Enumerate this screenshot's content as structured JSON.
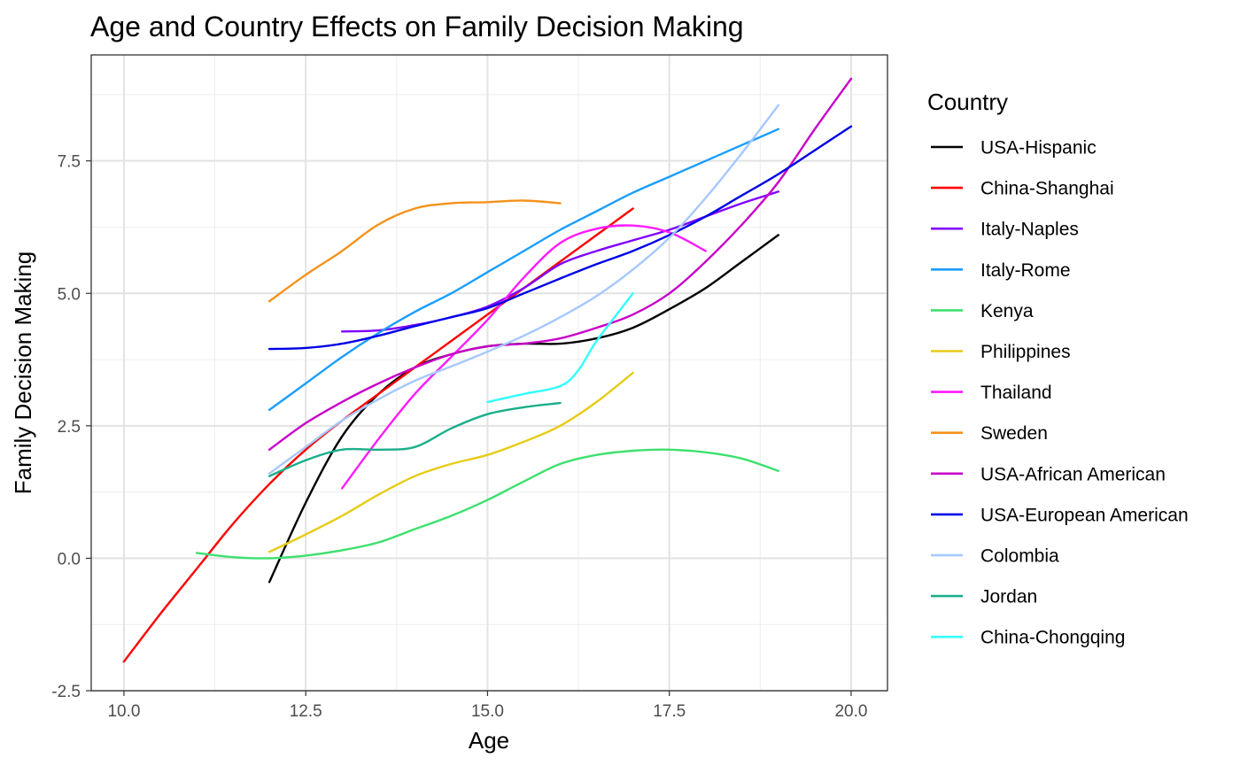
{
  "chart_data": {
    "type": "line",
    "title": "Age and Country Effects on Family Decision Making",
    "xlabel": "Age",
    "ylabel": "Family Decision Making",
    "xlim": [
      9.55,
      20.5
    ],
    "ylim": [
      -2.5,
      9.5
    ],
    "xticks": [
      {
        "value": 10.0,
        "label": "10.0"
      },
      {
        "value": 12.5,
        "label": "12.5"
      },
      {
        "value": 15.0,
        "label": "15.0"
      },
      {
        "value": 17.5,
        "label": "17.5"
      },
      {
        "value": 20.0,
        "label": "20.0"
      }
    ],
    "yticks": [
      {
        "value": -2.5,
        "label": "-2.5"
      },
      {
        "value": 0.0,
        "label": "0.0"
      },
      {
        "value": 2.5,
        "label": "2.5"
      },
      {
        "value": 5.0,
        "label": "5.0"
      },
      {
        "value": 7.5,
        "label": "7.5"
      }
    ],
    "grid": true,
    "legend_title": "Country",
    "legend_position": "right",
    "series": [
      {
        "name": "USA-Hispanic",
        "color": "#000000",
        "x": [
          12,
          12.5,
          13,
          13.5,
          14,
          14.5,
          15,
          15.5,
          16,
          16.5,
          17,
          17.5,
          18,
          18.5,
          19
        ],
        "y": [
          -0.45,
          1.05,
          2.3,
          3.1,
          3.6,
          3.85,
          4.0,
          4.05,
          4.05,
          4.15,
          4.35,
          4.7,
          5.1,
          5.6,
          6.1
        ]
      },
      {
        "name": "China-Shanghai",
        "color": "#ff0000",
        "x": [
          10,
          10.5,
          11,
          11.5,
          12,
          12.5,
          13,
          13.5,
          14,
          14.5,
          15,
          15.5,
          16,
          16.5,
          17
        ],
        "y": [
          -1.95,
          -1.05,
          -0.2,
          0.65,
          1.4,
          2.05,
          2.6,
          3.1,
          3.6,
          4.1,
          4.6,
          5.1,
          5.6,
          6.1,
          6.6
        ]
      },
      {
        "name": "Italy-Naples",
        "color": "#8000ff",
        "x": [
          13,
          13.5,
          14,
          14.5,
          15,
          15.5,
          16,
          16.5,
          17,
          17.5,
          18,
          18.5,
          19
        ],
        "y": [
          4.28,
          4.3,
          4.4,
          4.55,
          4.75,
          5.1,
          5.55,
          5.8,
          6.0,
          6.2,
          6.45,
          6.7,
          6.92
        ]
      },
      {
        "name": "Italy-Rome",
        "color": "#1a9eff",
        "x": [
          12,
          12.5,
          13,
          13.5,
          14,
          14.5,
          15,
          15.5,
          16,
          16.5,
          17,
          17.5,
          18,
          18.5,
          19
        ],
        "y": [
          2.8,
          3.3,
          3.8,
          4.25,
          4.65,
          5.0,
          5.4,
          5.8,
          6.2,
          6.55,
          6.9,
          7.2,
          7.5,
          7.8,
          8.1
        ]
      },
      {
        "name": "Kenya",
        "color": "#3ee06e",
        "x": [
          11,
          11.5,
          12,
          12.5,
          13,
          13.5,
          14,
          14.5,
          15,
          15.5,
          16,
          16.5,
          17,
          17.5,
          18,
          18.5,
          19
        ],
        "y": [
          0.1,
          0.02,
          0.0,
          0.05,
          0.15,
          0.3,
          0.55,
          0.8,
          1.1,
          1.45,
          1.78,
          1.95,
          2.03,
          2.05,
          2.0,
          1.88,
          1.65
        ]
      },
      {
        "name": "Philippines",
        "color": "#e6cc17",
        "x": [
          12,
          12.5,
          13,
          13.5,
          14,
          14.5,
          15,
          15.5,
          16,
          16.5,
          17
        ],
        "y": [
          0.12,
          0.45,
          0.8,
          1.2,
          1.55,
          1.78,
          1.95,
          2.2,
          2.5,
          2.95,
          3.5
        ]
      },
      {
        "name": "Thailand",
        "color": "#ff1aff",
        "x": [
          13,
          13.5,
          14,
          14.5,
          15,
          15.5,
          16,
          16.5,
          17,
          17.5,
          18
        ],
        "y": [
          1.32,
          2.25,
          3.1,
          3.8,
          4.5,
          5.3,
          5.95,
          6.22,
          6.28,
          6.15,
          5.8
        ]
      },
      {
        "name": "Sweden",
        "color": "#f5921b",
        "x": [
          12,
          12.5,
          13,
          13.5,
          14,
          14.5,
          15,
          15.5,
          16
        ],
        "y": [
          4.85,
          5.35,
          5.8,
          6.3,
          6.6,
          6.7,
          6.72,
          6.75,
          6.7
        ]
      },
      {
        "name": "USA-African American",
        "color": "#c800c8",
        "x": [
          12,
          12.5,
          13,
          13.5,
          14,
          14.5,
          15,
          15.5,
          16,
          16.5,
          17,
          17.5,
          18,
          18.5,
          19,
          19.5,
          20
        ],
        "y": [
          2.05,
          2.55,
          2.95,
          3.3,
          3.6,
          3.85,
          4.0,
          4.05,
          4.15,
          4.35,
          4.6,
          5.0,
          5.6,
          6.3,
          7.1,
          8.1,
          9.05
        ]
      },
      {
        "name": "USA-European American",
        "color": "#0000e6",
        "x": [
          12,
          12.5,
          13,
          13.5,
          14,
          14.5,
          15,
          15.5,
          16,
          16.5,
          17,
          17.5,
          18,
          18.5,
          19,
          19.5,
          20
        ],
        "y": [
          3.95,
          3.97,
          4.05,
          4.2,
          4.38,
          4.55,
          4.72,
          5.0,
          5.28,
          5.55,
          5.8,
          6.1,
          6.45,
          6.85,
          7.25,
          7.7,
          8.15
        ]
      },
      {
        "name": "Colombia",
        "color": "#a6c8ff",
        "x": [
          12,
          12.5,
          13,
          13.5,
          14,
          14.5,
          15,
          15.5,
          16,
          16.5,
          17,
          17.5,
          18,
          18.5,
          19
        ],
        "y": [
          1.6,
          2.1,
          2.6,
          3.0,
          3.35,
          3.62,
          3.9,
          4.2,
          4.55,
          4.95,
          5.45,
          6.05,
          6.8,
          7.65,
          8.55
        ]
      },
      {
        "name": "Jordan",
        "color": "#1aaf8a",
        "x": [
          12,
          12.5,
          13,
          13.5,
          14,
          14.5,
          15,
          15.5,
          16
        ],
        "y": [
          1.55,
          1.85,
          2.05,
          2.05,
          2.1,
          2.45,
          2.72,
          2.85,
          2.93
        ]
      },
      {
        "name": "China-Chongqing",
        "color": "#33ffff",
        "x": [
          15,
          15.5,
          16,
          16.25,
          16.5,
          17
        ],
        "y": [
          2.95,
          3.1,
          3.25,
          3.55,
          4.1,
          5.0
        ]
      }
    ]
  }
}
